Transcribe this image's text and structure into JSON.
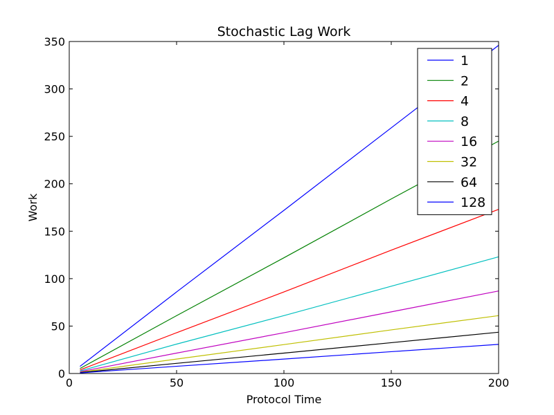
{
  "chart_data": {
    "type": "line",
    "title": "Stochastic Lag Work",
    "xlabel": "Protocol Time",
    "ylabel": "Work",
    "xlim": [
      0,
      200
    ],
    "ylim": [
      0,
      350
    ],
    "xticks": [
      0,
      50,
      100,
      150,
      200
    ],
    "yticks": [
      0,
      50,
      100,
      150,
      200,
      250,
      300,
      350
    ],
    "grid": false,
    "legend_position": "top-right",
    "x": [
      5,
      50,
      100,
      150,
      200
    ],
    "series": [
      {
        "name": "1",
        "color": "#0000ff",
        "values": [
          7.5,
          86,
          172,
          259,
          346
        ]
      },
      {
        "name": "2",
        "color": "#008000",
        "values": [
          5.3,
          61,
          122,
          184,
          245
        ]
      },
      {
        "name": "4",
        "color": "#ff0000",
        "values": [
          3.8,
          43,
          86,
          130,
          173
        ]
      },
      {
        "name": "8",
        "color": "#00bfbf",
        "values": [
          2.7,
          31,
          61,
          92,
          123
        ]
      },
      {
        "name": "16",
        "color": "#bf00bf",
        "values": [
          1.9,
          21.5,
          43,
          65,
          87
        ]
      },
      {
        "name": "32",
        "color": "#bfbf00",
        "values": [
          1.3,
          15.2,
          30.5,
          46,
          61
        ]
      },
      {
        "name": "64",
        "color": "#000000",
        "values": [
          0.95,
          10.7,
          21.5,
          32.5,
          43.5
        ]
      },
      {
        "name": "128",
        "color": "#0000ff",
        "values": [
          0.65,
          7.6,
          15.2,
          23,
          30.7
        ]
      }
    ]
  }
}
